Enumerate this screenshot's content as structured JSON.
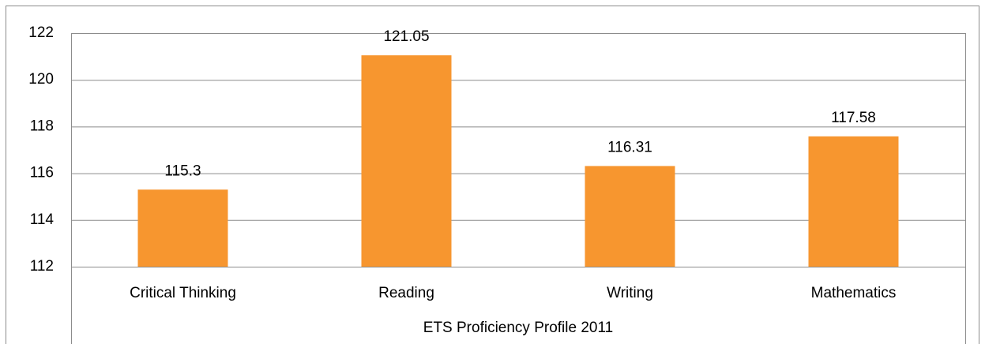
{
  "chart_data": {
    "type": "bar",
    "x_label": "ETS Proficiency Profile 2011",
    "categories": [
      "Critical Thinking",
      "Reading",
      "Writing",
      "Mathematics"
    ],
    "values": [
      115.3,
      121.05,
      116.31,
      117.58
    ],
    "color": "#f7962f",
    "ylim": [
      112,
      122
    ],
    "yticks": [
      112,
      114,
      116,
      118,
      120,
      122
    ],
    "grid": true
  }
}
